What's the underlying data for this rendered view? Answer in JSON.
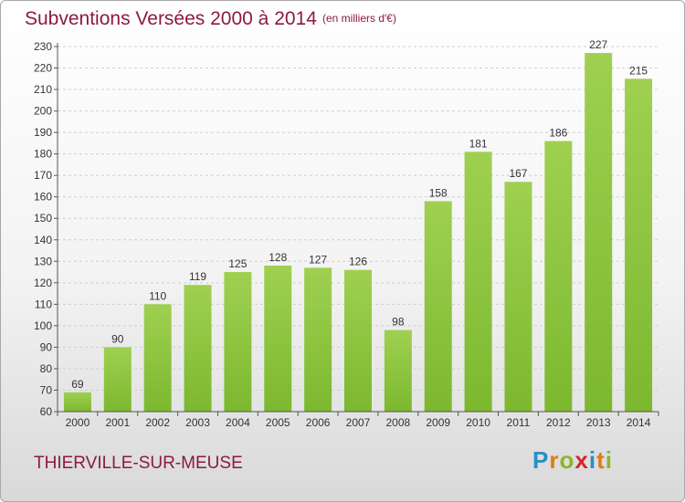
{
  "header": {
    "title": "Subventions Versées 2000 à 2014",
    "subtitle": "(en milliers d'€)"
  },
  "footer": {
    "commune": "THIERVILLE-SUR-MEUSE",
    "logo": {
      "letters": [
        "P",
        "r",
        "o",
        "x",
        "i",
        "t",
        "i"
      ],
      "colors": [
        "#2a8ec8",
        "#e07b12",
        "#8ab62a",
        "#d4242f",
        "#2a8ec8",
        "#e07b12",
        "#8ab62a"
      ]
    }
  },
  "chart_data": {
    "type": "bar",
    "title": "Subventions Versées 2000 à 2014",
    "subtitle": "(en milliers d'€)",
    "xlabel": "",
    "ylabel": "",
    "categories": [
      "2000",
      "2001",
      "2002",
      "2003",
      "2004",
      "2005",
      "2006",
      "2007",
      "2008",
      "2009",
      "2010",
      "2011",
      "2012",
      "2013",
      "2014"
    ],
    "values": [
      69,
      90,
      110,
      119,
      125,
      128,
      127,
      126,
      98,
      158,
      181,
      167,
      186,
      227,
      215
    ],
    "ylim": [
      60,
      230
    ],
    "yticks": [
      60,
      70,
      80,
      90,
      100,
      110,
      120,
      130,
      140,
      150,
      160,
      170,
      180,
      190,
      200,
      210,
      220,
      230
    ],
    "grid": true,
    "bar_color": "#7cb82f",
    "bar_color_light": "#9fd051"
  }
}
